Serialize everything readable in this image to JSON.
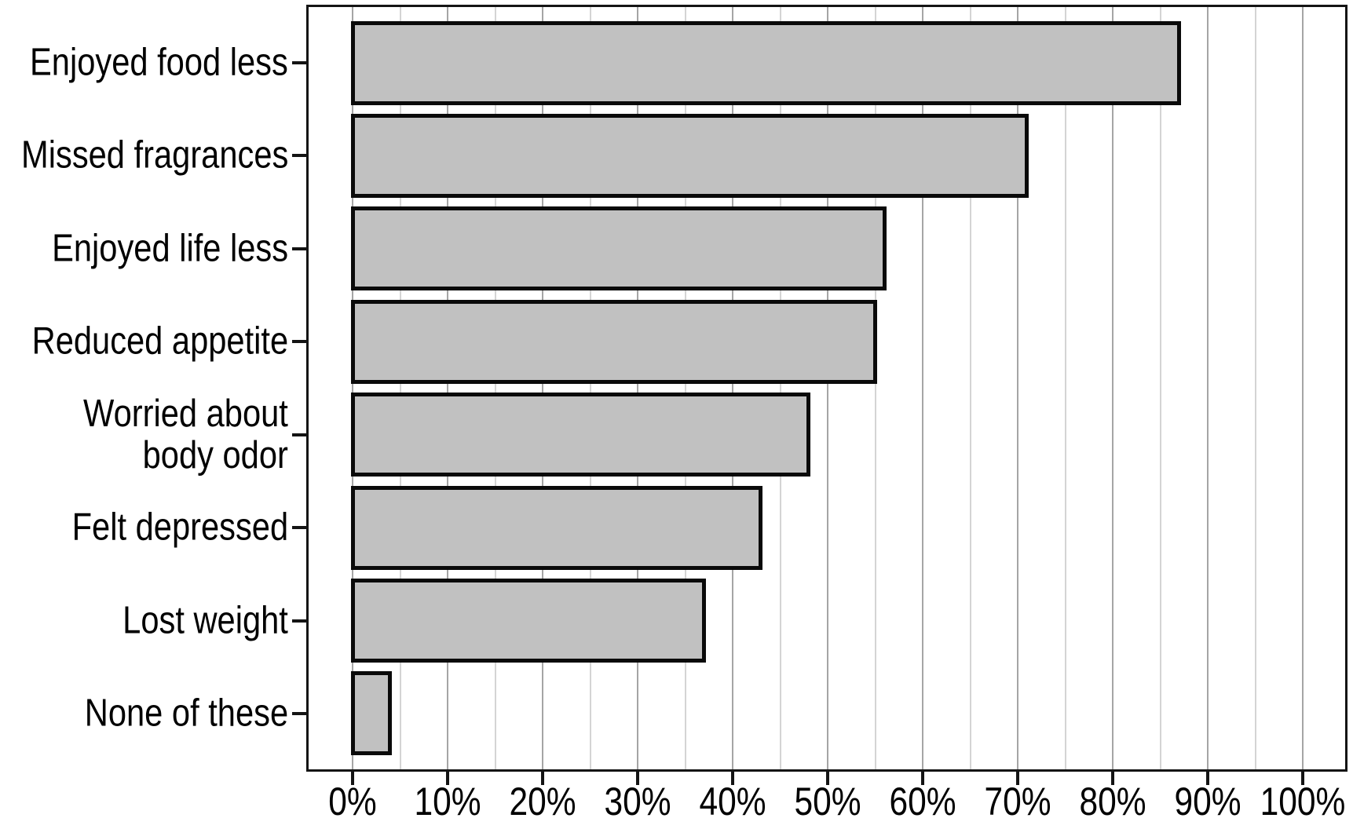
{
  "chart_data": {
    "type": "bar",
    "orientation": "horizontal",
    "title": "",
    "xlabel": "",
    "ylabel": "",
    "categories": [
      "Enjoyed food less",
      "Missed fragrances",
      "Enjoyed life less",
      "Reduced appetite",
      "Worried about\nbody odor",
      "Felt depressed",
      "Lost weight",
      "None of these"
    ],
    "values": [
      87,
      71,
      56,
      55,
      48,
      43,
      37,
      4
    ],
    "value_unit": "%",
    "xlim": [
      0,
      100
    ],
    "x_major_ticks": [
      0,
      10,
      20,
      30,
      40,
      50,
      60,
      70,
      80,
      90,
      100
    ],
    "x_tick_labels": [
      "0%",
      "10%",
      "20%",
      "30%",
      "40%",
      "50%",
      "60%",
      "70%",
      "80%",
      "90%",
      "100%"
    ],
    "x_minor_gridlines": [
      5,
      15,
      25,
      35,
      45,
      55,
      65,
      75,
      85,
      95
    ],
    "grid": "vertical gridlines; major every 10%, minor every 5%",
    "legend": "none",
    "colors": {
      "background": "#ffffff",
      "bar_fill": "#c1c1c1",
      "bar_border": "#0a0a0a",
      "plot_border": "#141414",
      "grid_major": "#a5a5a5",
      "grid_minor": "#d4d4d4",
      "text": "#000000"
    }
  }
}
